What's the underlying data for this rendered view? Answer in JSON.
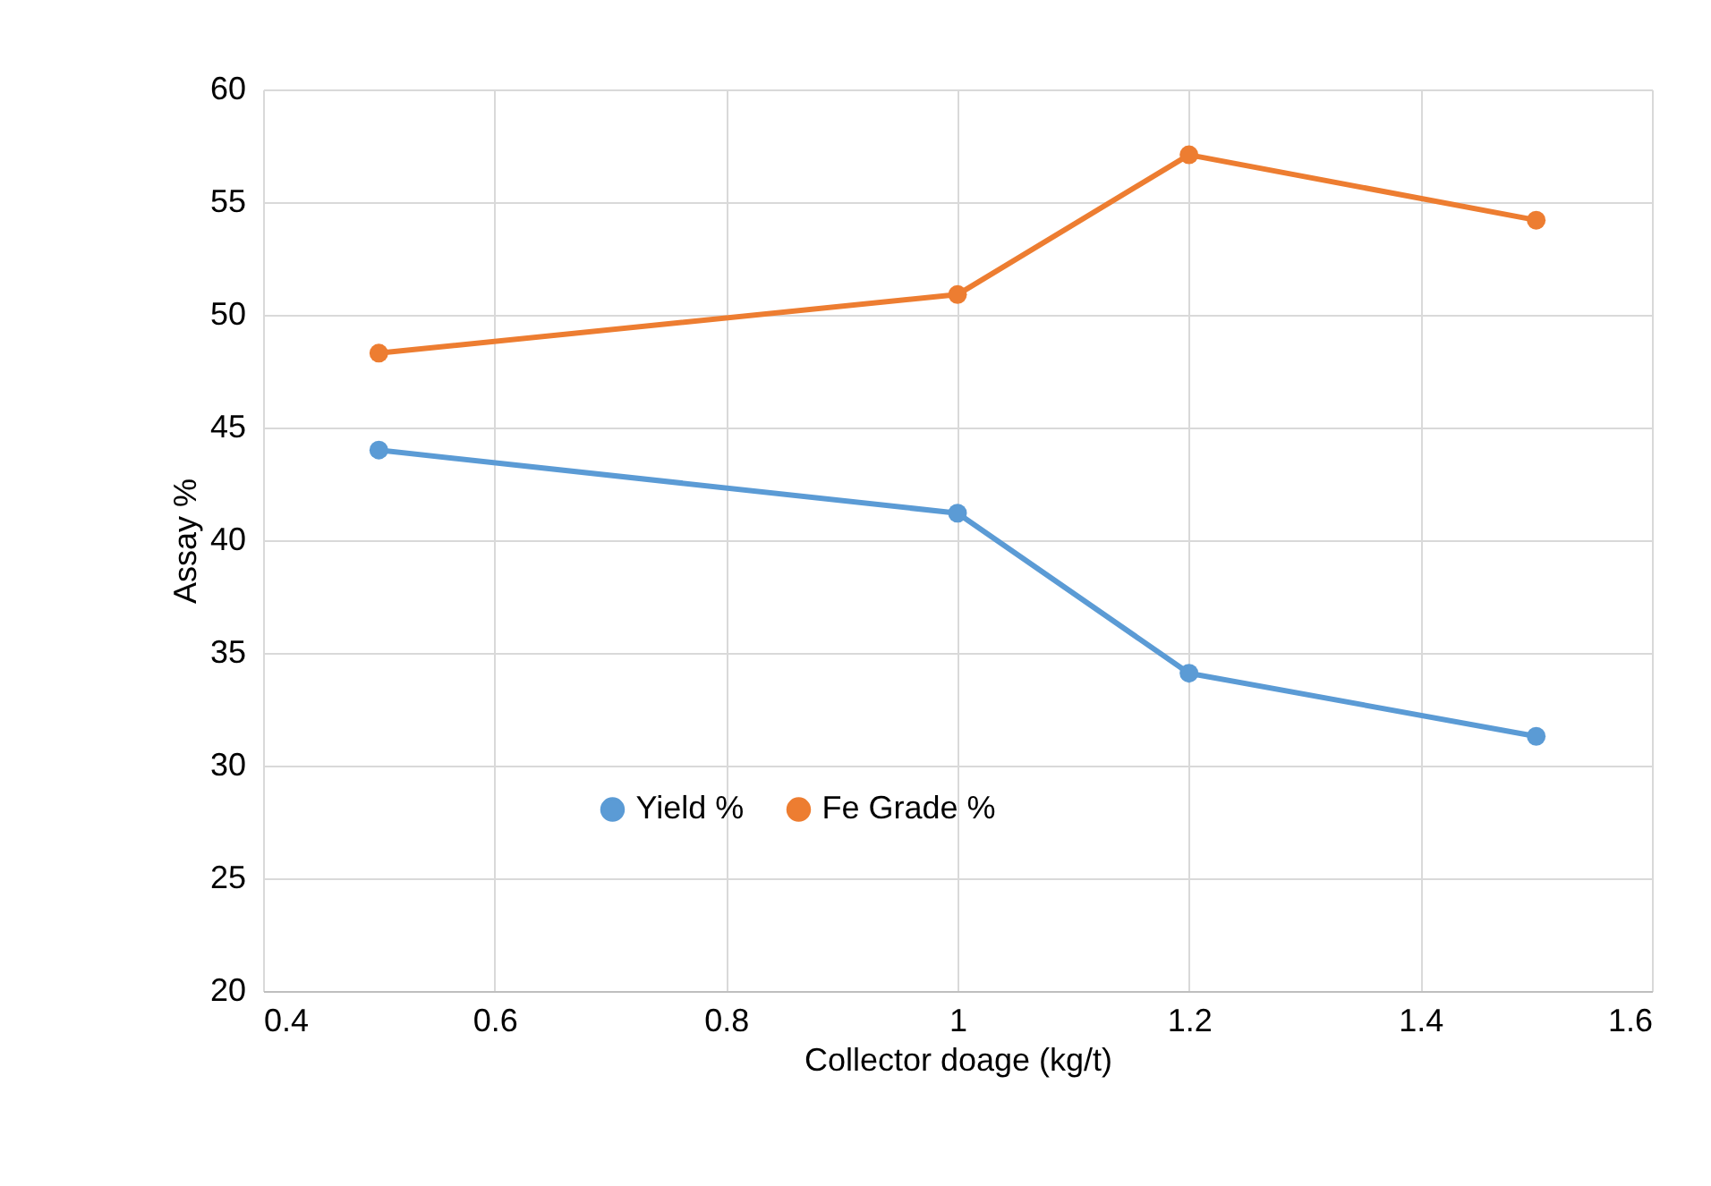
{
  "chart_data": {
    "type": "line",
    "xlabel": "Collector doage (kg/t)",
    "ylabel": "Assay %",
    "x": [
      0.5,
      1,
      1.2,
      1.5
    ],
    "series": [
      {
        "name": "Yield %",
        "color": "#5b9bd5",
        "values": [
          44.0,
          41.2,
          34.1,
          31.3
        ]
      },
      {
        "name": "Fe Grade %",
        "color": "#ed7d31",
        "values": [
          48.3,
          50.9,
          57.1,
          54.2
        ]
      }
    ],
    "xlim": [
      0.4,
      1.6
    ],
    "xticks": [
      0.4,
      0.6,
      0.8,
      1,
      1.2,
      1.4,
      1.6
    ],
    "ylim": [
      20,
      60
    ],
    "yticks": [
      20,
      25,
      30,
      35,
      40,
      45,
      50,
      55,
      60
    ],
    "grid": true,
    "legend": "bottom",
    "marker": "circle",
    "line_style": "solid"
  }
}
